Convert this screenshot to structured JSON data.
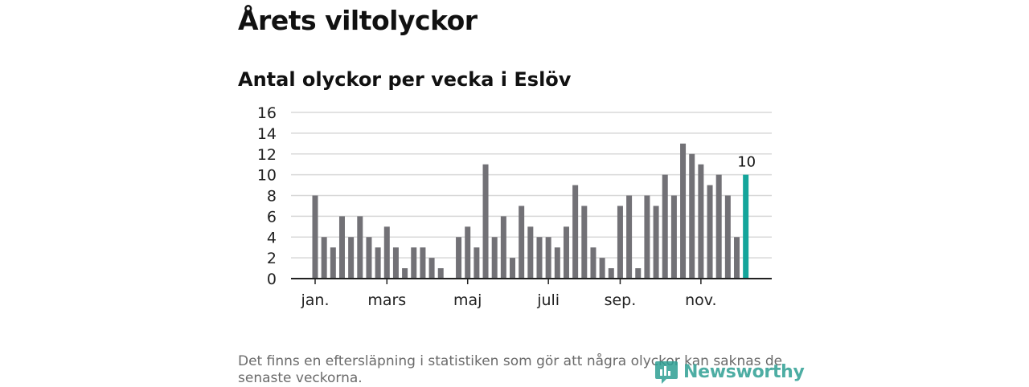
{
  "title": "Årets viltolyckor",
  "subtitle": "Antal olyckor per vecka i Eslöv",
  "footnote": "Det finns en eftersläpning i statistiken som gör att några olyckor kan saknas de senaste veckorna.",
  "brand": "Newsworthy",
  "colors": {
    "bar": "#727176",
    "highlight": "#14a59b",
    "grid": "#d8d8d8",
    "axis": "#222222",
    "brand": "#2e9f93"
  },
  "chart_data": {
    "type": "bar",
    "title": "Antal olyckor per vecka i Eslöv",
    "xlabel": "",
    "ylabel": "",
    "ylim": [
      0,
      16
    ],
    "yticks": [
      0,
      2,
      4,
      6,
      8,
      10,
      12,
      14,
      16
    ],
    "weeks": [
      1,
      2,
      3,
      4,
      5,
      6,
      7,
      8,
      9,
      10,
      11,
      12,
      13,
      14,
      15,
      16,
      17,
      18,
      19,
      20,
      21,
      22,
      23,
      24,
      25,
      26,
      27,
      28,
      29,
      30,
      31,
      32,
      33,
      34,
      35,
      36,
      37,
      38,
      39,
      40,
      41,
      42,
      43,
      44,
      45,
      46,
      47,
      48,
      49
    ],
    "values": [
      8,
      4,
      3,
      6,
      4,
      6,
      4,
      3,
      5,
      3,
      1,
      3,
      3,
      2,
      1,
      0,
      4,
      5,
      3,
      11,
      4,
      6,
      2,
      7,
      5,
      4,
      4,
      3,
      5,
      9,
      7,
      3,
      2,
      1,
      7,
      8,
      1,
      8,
      7,
      10,
      8,
      13,
      12,
      11,
      9,
      10,
      8,
      4,
      10
    ],
    "highlight_index": 48,
    "highlight_label": "10",
    "x_tick_labels": [
      {
        "label": "jan.",
        "week": 1
      },
      {
        "label": "mars",
        "week": 9
      },
      {
        "label": "maj",
        "week": 18
      },
      {
        "label": "juli",
        "week": 27
      },
      {
        "label": "sep.",
        "week": 35
      },
      {
        "label": "nov.",
        "week": 44
      }
    ]
  }
}
